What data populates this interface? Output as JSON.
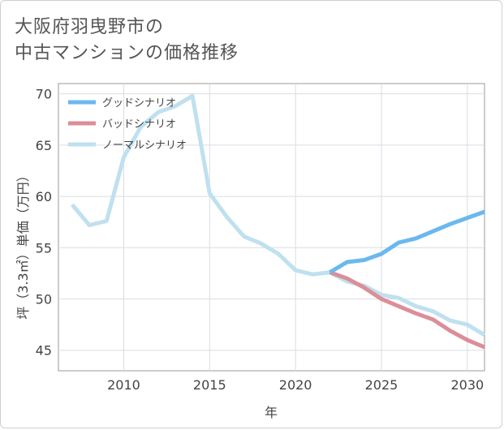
{
  "title": {
    "line1": "大阪府羽曳野市の",
    "line2": "中古マンションの価格推移"
  },
  "chart_data": {
    "type": "line",
    "xlabel": "年",
    "ylabel": "坪（3.3㎡）単価（万円）",
    "xlim": [
      2006.2,
      2031
    ],
    "ylim": [
      43,
      71
    ],
    "x_ticks": [
      2010,
      2015,
      2020,
      2025,
      2030
    ],
    "y_ticks": [
      45,
      50,
      55,
      60,
      65,
      70
    ],
    "grid": true,
    "legend_position": "top-left",
    "series": [
      {
        "name": "グッドシナリオ",
        "color": "#6bb8ee",
        "x": [
          2022,
          2023,
          2024,
          2025,
          2026,
          2027,
          2028,
          2029,
          2030,
          2031
        ],
        "y": [
          52.6,
          53.6,
          53.8,
          54.4,
          55.5,
          55.9,
          56.6,
          57.3,
          57.9,
          58.5
        ]
      },
      {
        "name": "バッドシナリオ",
        "color": "#dc8e98",
        "x": [
          2022,
          2023,
          2024,
          2025,
          2026,
          2027,
          2028,
          2029,
          2030,
          2031
        ],
        "y": [
          52.6,
          52.0,
          51.1,
          50.0,
          49.3,
          48.6,
          48.0,
          46.9,
          46.0,
          45.3
        ]
      },
      {
        "name": "ノーマルシナリオ",
        "color": "#bfe0ef",
        "x": [
          2007,
          2008,
          2009,
          2010,
          2011,
          2012,
          2013,
          2014,
          2015,
          2016,
          2017,
          2018,
          2019,
          2020,
          2021,
          2022,
          2023,
          2024,
          2025,
          2026,
          2027,
          2028,
          2029,
          2030,
          2031
        ],
        "y": [
          59.2,
          57.2,
          57.6,
          63.8,
          66.8,
          68.2,
          68.8,
          69.8,
          60.3,
          58.0,
          56.1,
          55.4,
          54.4,
          52.8,
          52.4,
          52.6,
          51.7,
          51.3,
          50.4,
          50.1,
          49.3,
          48.8,
          47.9,
          47.5,
          46.5
        ]
      }
    ]
  }
}
